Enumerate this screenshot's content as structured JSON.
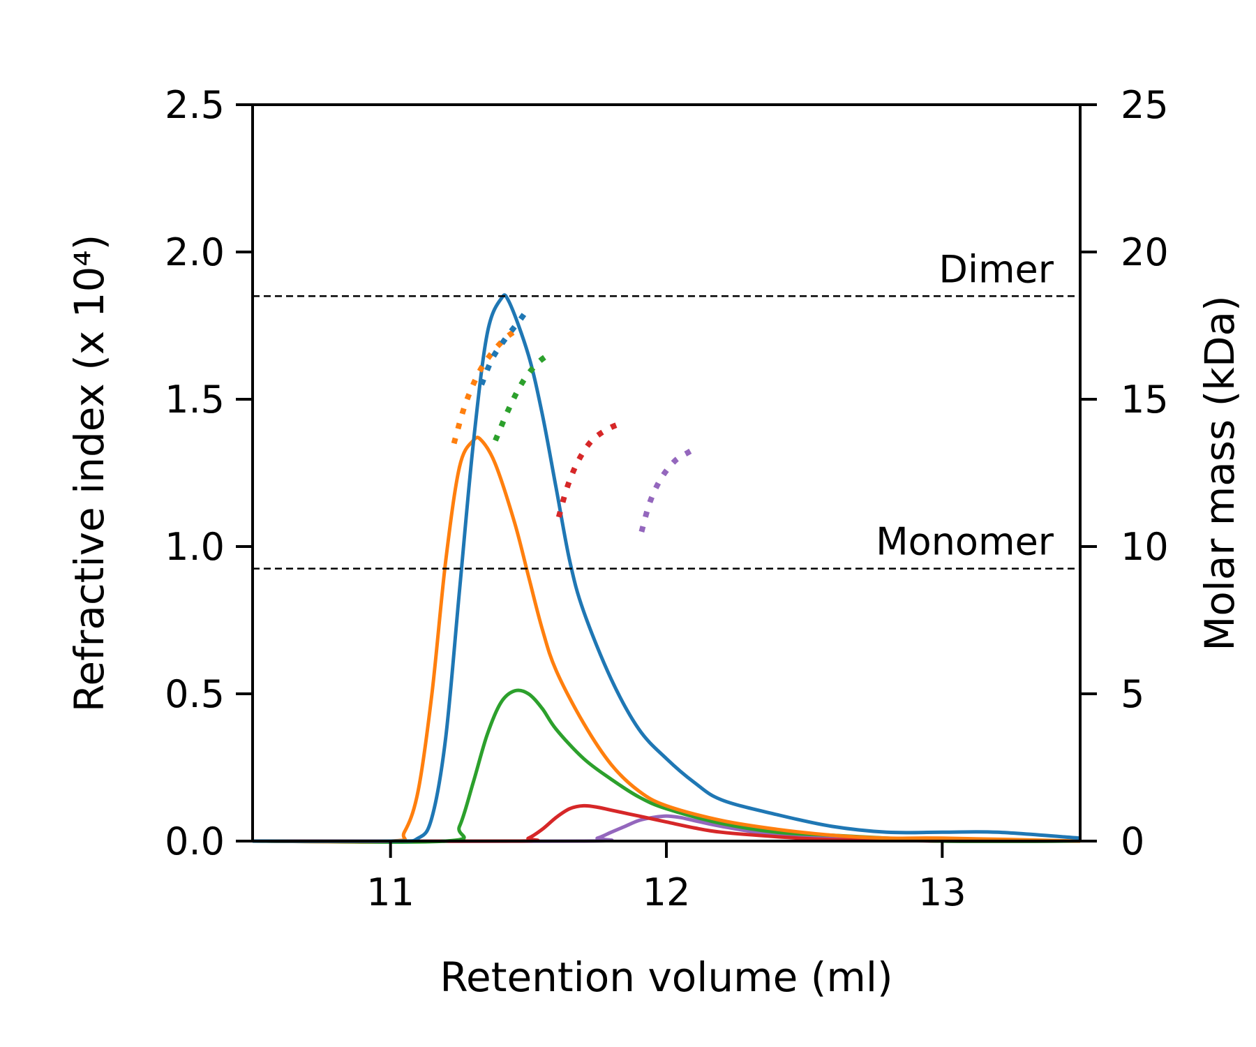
{
  "chart_data": {
    "type": "line",
    "xlabel": "Retention volume (ml)",
    "ylabel": "Refractive index (x 10⁴)",
    "y2label": "Molar mass (kDa)",
    "xlim": [
      10.5,
      13.5
    ],
    "ylim": [
      0,
      2.5
    ],
    "y2lim": [
      0,
      25
    ],
    "xticks": [
      "11",
      "12",
      "13"
    ],
    "yticks": [
      "0.0",
      "0.5",
      "1.0",
      "1.5",
      "2.0",
      "2.5"
    ],
    "y2ticks": [
      "0",
      "5",
      "10",
      "15",
      "20",
      "25"
    ],
    "colors": {
      "blue": "#1f77b4",
      "orange": "#ff7f0e",
      "green": "#2ca02c",
      "red": "#d62728",
      "purple": "#9467bd"
    },
    "reference_lines": [
      {
        "label": "Dimer",
        "y2": 18.5
      },
      {
        "label": "Monomer",
        "y2": 9.25
      }
    ],
    "ri_series": [
      {
        "color": "blue",
        "x": [
          10.5,
          11.0,
          11.1,
          11.15,
          11.2,
          11.25,
          11.3,
          11.35,
          11.4,
          11.43,
          11.5,
          11.55,
          11.6,
          11.65,
          11.7,
          11.8,
          11.9,
          12.0,
          12.1,
          12.2,
          12.4,
          12.6,
          12.8,
          13.0,
          13.2,
          13.5
        ],
        "y": [
          0.0,
          0.0,
          0.01,
          0.08,
          0.35,
          0.85,
          1.35,
          1.72,
          1.84,
          1.83,
          1.65,
          1.45,
          1.2,
          0.95,
          0.78,
          0.55,
          0.38,
          0.28,
          0.2,
          0.14,
          0.09,
          0.05,
          0.03,
          0.03,
          0.03,
          0.01
        ]
      },
      {
        "color": "orange",
        "x": [
          10.5,
          11.0,
          11.05,
          11.1,
          11.15,
          11.2,
          11.25,
          11.3,
          11.33,
          11.38,
          11.45,
          11.5,
          11.55,
          11.6,
          11.7,
          11.8,
          11.9,
          12.0,
          12.2,
          12.4,
          12.6,
          12.8,
          13.0,
          13.5
        ],
        "y": [
          0.0,
          0.0,
          0.03,
          0.17,
          0.5,
          0.95,
          1.27,
          1.36,
          1.36,
          1.28,
          1.08,
          0.9,
          0.72,
          0.58,
          0.4,
          0.26,
          0.17,
          0.12,
          0.07,
          0.04,
          0.02,
          0.01,
          0.01,
          0.0
        ]
      },
      {
        "color": "green",
        "x": [
          10.5,
          11.2,
          11.25,
          11.3,
          11.35,
          11.4,
          11.45,
          11.5,
          11.55,
          11.6,
          11.7,
          11.8,
          11.9,
          12.0,
          12.2,
          12.4,
          12.6,
          12.8,
          13.0,
          13.5
        ],
        "y": [
          0.0,
          0.0,
          0.05,
          0.2,
          0.36,
          0.47,
          0.51,
          0.5,
          0.45,
          0.38,
          0.28,
          0.21,
          0.15,
          0.11,
          0.06,
          0.03,
          0.02,
          0.01,
          0.0,
          0.0
        ]
      },
      {
        "color": "red",
        "x": [
          10.5,
          11.45,
          11.5,
          11.55,
          11.6,
          11.65,
          11.7,
          11.75,
          11.8,
          11.9,
          12.0,
          12.1,
          12.2,
          12.4,
          12.6,
          13.0,
          13.5
        ],
        "y": [
          0.0,
          0.0,
          0.01,
          0.04,
          0.08,
          0.11,
          0.12,
          0.115,
          0.105,
          0.085,
          0.065,
          0.045,
          0.03,
          0.015,
          0.005,
          0.0,
          0.0
        ]
      },
      {
        "color": "purple",
        "x": [
          10.5,
          11.7,
          11.75,
          11.8,
          11.85,
          11.9,
          11.95,
          12.0,
          12.05,
          12.1,
          12.2,
          12.4,
          12.6,
          13.0,
          13.5
        ],
        "y": [
          0.0,
          0.0,
          0.01,
          0.03,
          0.05,
          0.07,
          0.08,
          0.085,
          0.08,
          0.07,
          0.05,
          0.02,
          0.01,
          0.0,
          0.0
        ]
      }
    ],
    "mass_series": [
      {
        "color": "orange",
        "x": [
          11.23,
          11.27,
          11.32,
          11.37,
          11.42,
          11.45
        ],
        "y2": [
          13.5,
          14.8,
          15.9,
          16.6,
          17.1,
          17.3
        ]
      },
      {
        "color": "blue",
        "x": [
          11.33,
          11.37,
          11.42,
          11.47,
          11.5
        ],
        "y2": [
          15.5,
          16.4,
          17.1,
          17.7,
          18.1
        ]
      },
      {
        "color": "green",
        "x": [
          11.38,
          11.43,
          11.48,
          11.53,
          11.57
        ],
        "y2": [
          13.6,
          14.7,
          15.6,
          16.2,
          16.5
        ]
      },
      {
        "color": "red",
        "x": [
          11.61,
          11.64,
          11.68,
          11.73,
          11.79,
          11.84
        ],
        "y2": [
          11.0,
          12.0,
          12.9,
          13.6,
          14.0,
          14.2
        ]
      },
      {
        "color": "purple",
        "x": [
          11.91,
          11.94,
          11.98,
          12.03,
          12.08,
          12.1
        ],
        "y2": [
          10.5,
          11.5,
          12.3,
          12.9,
          13.2,
          13.3
        ]
      }
    ]
  }
}
